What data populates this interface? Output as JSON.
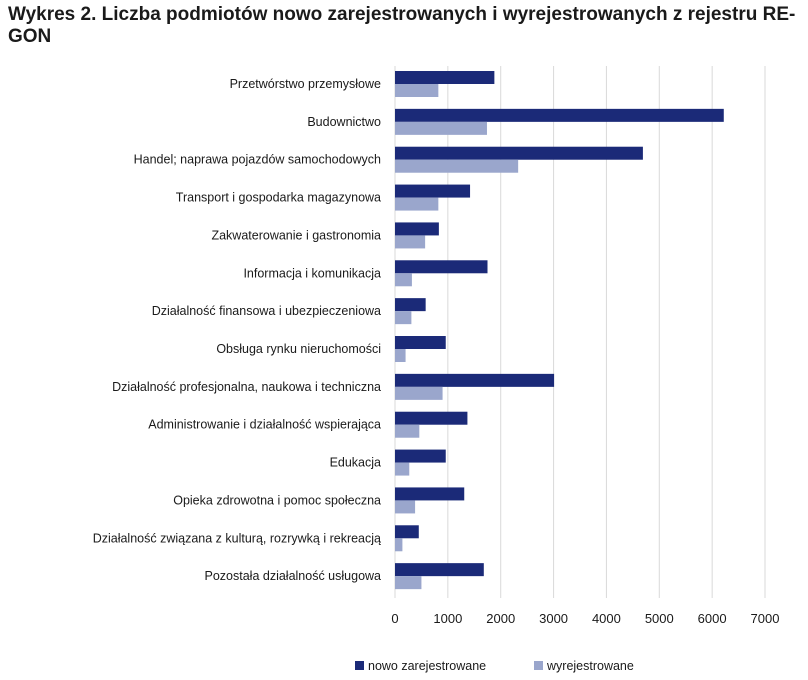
{
  "chart_data": {
    "type": "bar",
    "orientation": "horizontal",
    "title": "Wykres 2. Liczba podmiotów nowo zarejestrowanych  i wyrejestrowanych z rejestru RE-GON",
    "categories": [
      "Przetwórstwo przemysłowe",
      "Budownictwo",
      "Handel; naprawa pojazdów samochodowych",
      "Transport i gospodarka magazynowa",
      "Zakwaterowanie i gastronomia",
      "Informacja i komunikacja",
      "Działalność finansowa i ubezpieczeniowa",
      "Obsługa rynku nieruchomości",
      "Działalność profesjonalna, naukowa i techniczna",
      "Administrowanie i działalność wspierająca",
      "Edukacja",
      "Opieka zdrowotna i pomoc społeczna",
      "Działalność związana z kulturą, rozrywką i rekreacją",
      "Pozostała działalność usługowa"
    ],
    "series": [
      {
        "name": "nowo zarejestrowane",
        "color": "#1b2a78",
        "values": [
          1880,
          6220,
          4690,
          1420,
          830,
          1750,
          580,
          960,
          3010,
          1370,
          960,
          1310,
          450,
          1680
        ]
      },
      {
        "name": "wyrejestrowane",
        "color": "#9aa6cc",
        "values": [
          820,
          1740,
          2330,
          820,
          570,
          320,
          310,
          200,
          900,
          460,
          270,
          380,
          140,
          500
        ]
      }
    ],
    "xlim": [
      0,
      7000
    ],
    "xticks": [
      0,
      1000,
      2000,
      3000,
      4000,
      5000,
      6000,
      7000
    ],
    "xlabel": "",
    "ylabel": "",
    "grid": "vertical",
    "legend": "bottom"
  }
}
